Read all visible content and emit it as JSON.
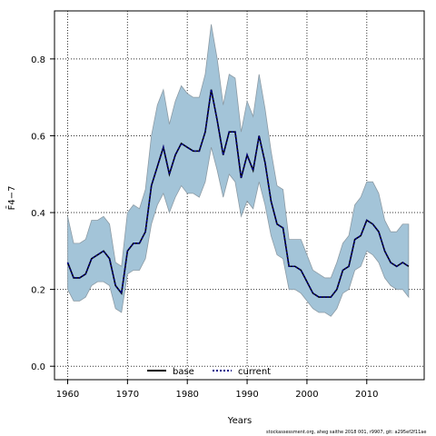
{
  "chart_data": {
    "type": "line",
    "xlabel": "Years",
    "ylabel": "F̄4−7",
    "xlim": [
      1957.8,
      2019.6
    ],
    "ylim": [
      -0.035,
      0.925
    ],
    "grid": true,
    "legend_position": "bottom-center",
    "x_ticks": [
      1960,
      1970,
      1980,
      1990,
      2000,
      2010
    ],
    "y_ticks": [
      0.0,
      0.2,
      0.4,
      0.6,
      0.8
    ],
    "y_tick_labels": [
      "0.0",
      "0.2",
      "0.4",
      "0.6",
      "0.8"
    ],
    "x": [
      1960,
      1961,
      1962,
      1963,
      1964,
      1965,
      1966,
      1967,
      1968,
      1969,
      1970,
      1971,
      1972,
      1973,
      1974,
      1975,
      1976,
      1977,
      1978,
      1979,
      1980,
      1981,
      1982,
      1983,
      1984,
      1985,
      1986,
      1987,
      1988,
      1989,
      1990,
      1991,
      1992,
      1993,
      1994,
      1995,
      1996,
      1997,
      1998,
      1999,
      2000,
      2001,
      2002,
      2003,
      2004,
      2005,
      2006,
      2007,
      2008,
      2009,
      2010,
      2011,
      2012,
      2013,
      2014,
      2015,
      2016,
      2017
    ],
    "series": [
      {
        "name": "base",
        "values": [
          0.27,
          0.23,
          0.23,
          0.24,
          0.28,
          0.29,
          0.3,
          0.28,
          0.21,
          0.19,
          0.3,
          0.32,
          0.32,
          0.35,
          0.47,
          0.52,
          0.57,
          0.5,
          0.55,
          0.58,
          0.57,
          0.56,
          0.56,
          0.61,
          0.72,
          0.64,
          0.55,
          0.61,
          0.61,
          0.49,
          0.55,
          0.51,
          0.6,
          0.53,
          0.43,
          0.37,
          0.36,
          0.26,
          0.26,
          0.25,
          0.22,
          0.19,
          0.18,
          0.18,
          0.18,
          0.2,
          0.25,
          0.26,
          0.33,
          0.34,
          0.38,
          0.37,
          0.35,
          0.3,
          0.27,
          0.26,
          0.27,
          0.26
        ]
      },
      {
        "name": "current",
        "values": [
          0.27,
          0.23,
          0.23,
          0.24,
          0.28,
          0.29,
          0.3,
          0.28,
          0.21,
          0.19,
          0.3,
          0.32,
          0.32,
          0.35,
          0.47,
          0.52,
          0.57,
          0.5,
          0.55,
          0.58,
          0.57,
          0.56,
          0.56,
          0.61,
          0.72,
          0.64,
          0.55,
          0.61,
          0.61,
          0.49,
          0.55,
          0.51,
          0.6,
          0.53,
          0.43,
          0.37,
          0.36,
          0.26,
          0.26,
          0.25,
          0.22,
          0.19,
          0.18,
          0.18,
          0.18,
          0.2,
          0.25,
          0.26,
          0.33,
          0.34,
          0.38,
          0.37,
          0.35,
          0.3,
          0.27,
          0.26,
          0.27,
          0.26
        ]
      }
    ],
    "band_upper": [
      0.39,
      0.32,
      0.32,
      0.33,
      0.38,
      0.38,
      0.39,
      0.37,
      0.27,
      0.26,
      0.4,
      0.42,
      0.41,
      0.46,
      0.6,
      0.68,
      0.72,
      0.63,
      0.69,
      0.73,
      0.71,
      0.7,
      0.7,
      0.76,
      0.89,
      0.8,
      0.68,
      0.76,
      0.75,
      0.61,
      0.69,
      0.65,
      0.76,
      0.67,
      0.56,
      0.47,
      0.46,
      0.33,
      0.33,
      0.33,
      0.29,
      0.25,
      0.24,
      0.23,
      0.23,
      0.27,
      0.32,
      0.34,
      0.42,
      0.44,
      0.48,
      0.48,
      0.45,
      0.38,
      0.35,
      0.35,
      0.37,
      0.37
    ],
    "band_lower": [
      0.2,
      0.17,
      0.17,
      0.18,
      0.21,
      0.22,
      0.22,
      0.21,
      0.15,
      0.14,
      0.24,
      0.25,
      0.25,
      0.28,
      0.37,
      0.42,
      0.45,
      0.4,
      0.44,
      0.47,
      0.45,
      0.45,
      0.44,
      0.48,
      0.57,
      0.51,
      0.44,
      0.5,
      0.48,
      0.39,
      0.43,
      0.41,
      0.48,
      0.42,
      0.34,
      0.29,
      0.28,
      0.2,
      0.2,
      0.19,
      0.17,
      0.15,
      0.14,
      0.14,
      0.13,
      0.15,
      0.19,
      0.2,
      0.25,
      0.26,
      0.3,
      0.29,
      0.27,
      0.23,
      0.21,
      0.2,
      0.2,
      0.18
    ],
    "colors": {
      "band_fill": "#a3c4d8",
      "band_stroke": "#8c9ba5",
      "base_line": "#000000",
      "current_line": "#00008b",
      "grid": "#333333"
    }
  },
  "footer_text": "stockassessment.org, aheg saithe 2018 001, r9907, git: a295ef2f11ae"
}
